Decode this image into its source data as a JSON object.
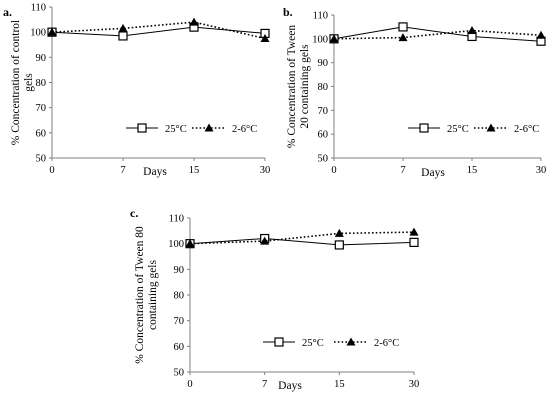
{
  "chart_data": [
    {
      "type": "line",
      "panel_label": "a.",
      "x": [
        0,
        7,
        15,
        30
      ],
      "x_tick_labels": [
        "0",
        "7",
        "15",
        "30"
      ],
      "series": [
        {
          "name": "25°C",
          "values": [
            100,
            98.5,
            102,
            99.5
          ],
          "marker": "square-open",
          "line": "solid"
        },
        {
          "name": "2-6°C",
          "values": [
            100,
            101.5,
            104,
            97.5
          ],
          "marker": "triangle-filled",
          "line": "dotted"
        }
      ],
      "xlabel": "Days",
      "ylabel": "% Concentration of control gels",
      "ylim": [
        50,
        110
      ],
      "y_ticks": [
        50,
        60,
        70,
        80,
        90,
        100,
        110
      ],
      "grid": false,
      "legend_position": "middle-right"
    },
    {
      "type": "line",
      "panel_label": "b.",
      "x": [
        0,
        7,
        15,
        30
      ],
      "x_tick_labels": [
        "0",
        "7",
        "15",
        "30"
      ],
      "series": [
        {
          "name": "25°C",
          "values": [
            100,
            105,
            101,
            99
          ],
          "marker": "square-open",
          "line": "solid"
        },
        {
          "name": "2-6°C",
          "values": [
            100,
            100.5,
            103.5,
            101.5
          ],
          "marker": "triangle-filled",
          "line": "dotted"
        }
      ],
      "xlabel": "Days",
      "ylabel": "% Concentration of Tween 20 containing gels",
      "ylim": [
        50,
        110
      ],
      "y_ticks": [
        50,
        60,
        70,
        80,
        90,
        100,
        110
      ],
      "grid": false,
      "legend_position": "middle-right"
    },
    {
      "type": "line",
      "panel_label": "c.",
      "x": [
        0,
        7,
        15,
        30
      ],
      "x_tick_labels": [
        "0",
        "7",
        "15",
        "30"
      ],
      "series": [
        {
          "name": "25°C",
          "values": [
            100,
            102,
            99.5,
            100.5
          ],
          "marker": "square-open",
          "line": "solid"
        },
        {
          "name": "2-6°C",
          "values": [
            100,
            101,
            104,
            104.5
          ],
          "marker": "triangle-filled",
          "line": "dotted"
        }
      ],
      "xlabel": "Days",
      "ylabel": "% Concentration of Tween 80 containing gels",
      "ylim": [
        50,
        110
      ],
      "y_ticks": [
        50,
        60,
        70,
        80,
        90,
        100,
        110
      ],
      "grid": false,
      "legend_position": "middle-right"
    }
  ],
  "colors": {
    "line": "#000000",
    "axis": "#808080",
    "background": "#ffffff"
  }
}
